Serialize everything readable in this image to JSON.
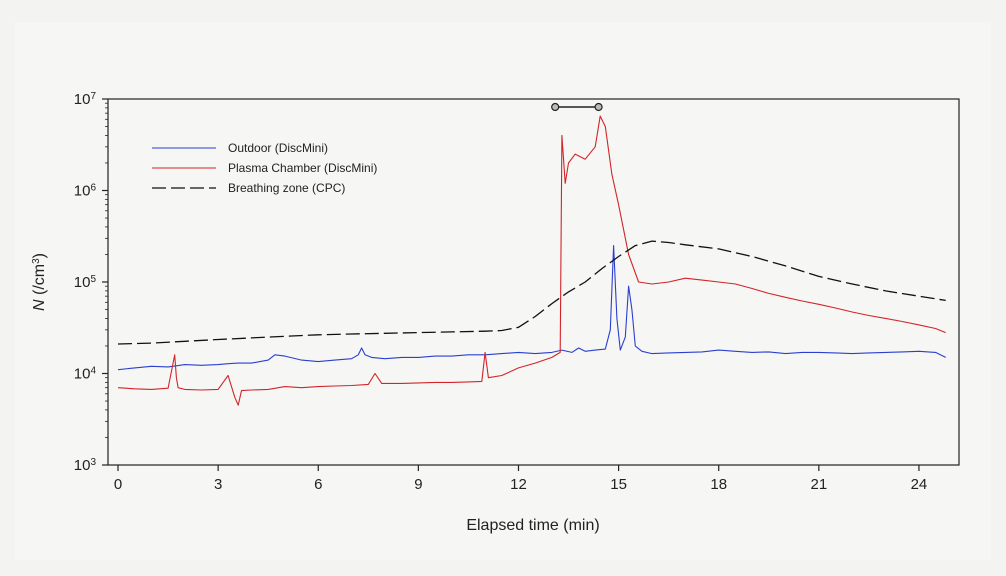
{
  "chart_data": {
    "type": "line",
    "title": "",
    "xlabel": "Elapsed time (min)",
    "ylabel": "N (/cm³)",
    "ylabel_parts": {
      "symbol": "N",
      "unit_open": " (/cm",
      "exp": "3",
      "unit_close": ")"
    },
    "xlim": [
      -0.3,
      25.2
    ],
    "ylim": [
      1000,
      10000000
    ],
    "yscale": "log",
    "x_ticks": [
      0,
      3,
      6,
      9,
      12,
      15,
      18,
      21,
      24
    ],
    "y_ticks": [
      {
        "value": 1000,
        "base": "10",
        "exp": "3"
      },
      {
        "value": 10000,
        "base": "10",
        "exp": "4"
      },
      {
        "value": 100000,
        "base": "10",
        "exp": "5"
      },
      {
        "value": 1000000,
        "base": "10",
        "exp": "6"
      },
      {
        "value": 10000000,
        "base": "10",
        "exp": "7"
      }
    ],
    "grid": false,
    "legend_position": "top-left",
    "annotation": {
      "type": "range-marker",
      "x_start": 13.1,
      "x_end": 14.4,
      "y": 10000000
    },
    "series": [
      {
        "name": "Outdoor (DiscMini)",
        "color": "#2b3fcf",
        "style": "solid",
        "x": [
          0,
          0.5,
          1,
          1.5,
          1.8,
          2,
          2.5,
          3,
          3.3,
          3.6,
          4,
          4.5,
          4.7,
          5,
          5.5,
          6,
          6.5,
          7,
          7.2,
          7.3,
          7.4,
          7.6,
          8,
          8.5,
          9,
          9.5,
          10,
          10.5,
          11,
          11.5,
          12,
          12.5,
          13,
          13.3,
          13.6,
          13.8,
          14,
          14.3,
          14.6,
          14.75,
          14.85,
          14.95,
          15.05,
          15.2,
          15.3,
          15.4,
          15.5,
          15.7,
          16,
          16.5,
          17,
          17.5,
          18,
          18.5,
          19,
          19.5,
          20,
          20.5,
          21,
          21.5,
          22,
          22.5,
          23,
          23.5,
          24,
          24.5,
          24.8
        ],
        "y": [
          11000,
          11500,
          12000,
          11800,
          12200,
          12500,
          12300,
          12500,
          12800,
          13000,
          13000,
          14000,
          16000,
          15500,
          14000,
          13500,
          14000,
          14500,
          16000,
          19000,
          16000,
          15000,
          14500,
          15000,
          15000,
          15500,
          15500,
          16000,
          16000,
          16500,
          17000,
          16500,
          17000,
          18000,
          17000,
          19000,
          17500,
          18000,
          18500,
          30000,
          250000,
          40000,
          18000,
          25000,
          90000,
          50000,
          20000,
          17500,
          16500,
          16800,
          17000,
          17200,
          18000,
          17500,
          17000,
          17200,
          16500,
          17000,
          17000,
          16800,
          16500,
          16800,
          17000,
          17200,
          17500,
          17000,
          15000
        ]
      },
      {
        "name": "Plasma Chamber (DiscMini)",
        "color": "#d2242a",
        "style": "solid",
        "x": [
          0,
          0.5,
          1,
          1.5,
          1.7,
          1.75,
          1.8,
          2,
          2.5,
          3,
          3.3,
          3.5,
          3.6,
          3.7,
          4,
          4.5,
          5,
          5.5,
          6,
          6.5,
          7,
          7.5,
          7.7,
          7.9,
          8.5,
          9,
          9.5,
          10,
          10.5,
          10.9,
          11,
          11.1,
          11.5,
          12,
          12.5,
          13,
          13.25,
          13.3,
          13.4,
          13.5,
          13.7,
          14,
          14.3,
          14.45,
          14.6,
          14.8,
          15,
          15.3,
          15.6,
          16,
          16.5,
          17,
          17.5,
          18,
          18.5,
          19,
          19.5,
          20,
          20.5,
          21,
          21.5,
          22,
          22.5,
          23,
          23.5,
          24,
          24.5,
          24.8
        ],
        "y": [
          7000,
          6800,
          6700,
          6900,
          16000,
          9000,
          7000,
          6700,
          6600,
          6700,
          9500,
          5500,
          4500,
          6500,
          6600,
          6700,
          7200,
          7000,
          7200,
          7300,
          7400,
          7600,
          10000,
          7800,
          7800,
          7900,
          8000,
          8000,
          8100,
          8200,
          17000,
          9000,
          9500,
          11500,
          13000,
          15000,
          17000,
          4000000,
          1200000,
          2000000,
          2500000,
          2200000,
          3000000,
          6500000,
          5000000,
          1500000,
          700000,
          200000,
          100000,
          95000,
          100000,
          110000,
          105000,
          100000,
          95000,
          85000,
          75000,
          68000,
          62000,
          57000,
          52000,
          47000,
          43000,
          40000,
          37000,
          34000,
          31000,
          28000
        ]
      },
      {
        "name": "Breathing zone (CPC)",
        "color": "#111111",
        "style": "dashed",
        "x": [
          0,
          1,
          2,
          3,
          4,
          5,
          6,
          7,
          8,
          9,
          10,
          11,
          11.5,
          12,
          12.5,
          13,
          13.5,
          14,
          14.5,
          15,
          15.5,
          16,
          16.5,
          17,
          18,
          19,
          20,
          21,
          22,
          23,
          24,
          24.8
        ],
        "y": [
          21000,
          21500,
          22500,
          23500,
          24500,
          25500,
          26500,
          27000,
          27500,
          28000,
          28500,
          29000,
          29500,
          32000,
          42000,
          58000,
          78000,
          100000,
          140000,
          190000,
          250000,
          280000,
          270000,
          255000,
          230000,
          190000,
          150000,
          115000,
          95000,
          80000,
          70000,
          63000
        ]
      }
    ]
  }
}
